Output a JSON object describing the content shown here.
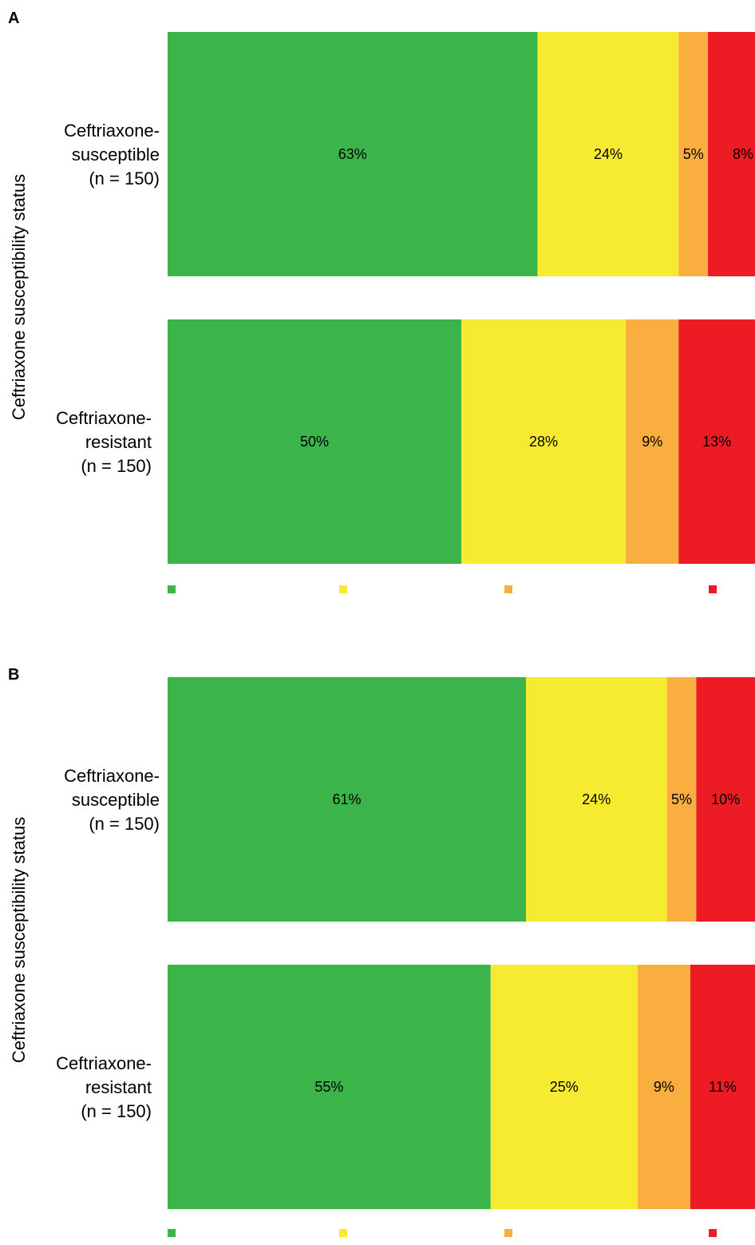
{
  "colors": {
    "green": "#3bb54a",
    "yellow": "#f6eb30",
    "orange": "#fbae40",
    "red": "#ed1c24"
  },
  "chart_data": [
    {
      "type": "bar",
      "orientation": "horizontal",
      "stacked": true,
      "panel_label": "A",
      "ylabel": "Ceftriaxone susceptibility status",
      "xlim": [
        0,
        100
      ],
      "legend_placement": "bottom",
      "categories": [
        {
          "lines": [
            "Ceftriaxone-",
            "susceptible",
            "(n = 150)"
          ]
        },
        {
          "lines": [
            "Ceftriaxone-",
            "resistant",
            "(n = 150)"
          ]
        }
      ],
      "series": [
        {
          "color_key": "green",
          "values": [
            63,
            50
          ],
          "labels": [
            "63%",
            "50%"
          ]
        },
        {
          "color_key": "yellow",
          "values": [
            24,
            28
          ],
          "labels": [
            "24%",
            "28%"
          ]
        },
        {
          "color_key": "orange",
          "values": [
            5,
            9
          ],
          "labels": [
            "5%",
            "9%"
          ]
        },
        {
          "color_key": "red",
          "values": [
            8,
            13
          ],
          "labels": [
            "8%",
            "13%"
          ]
        }
      ]
    },
    {
      "type": "bar",
      "orientation": "horizontal",
      "stacked": true,
      "panel_label": "B",
      "ylabel": "Ceftriaxone susceptibility status",
      "xlim": [
        0,
        100
      ],
      "legend_placement": "bottom",
      "categories": [
        {
          "lines": [
            "Ceftriaxone-",
            "susceptible",
            "(n = 150)"
          ]
        },
        {
          "lines": [
            "Ceftriaxone-",
            "resistant",
            "(n = 150)"
          ]
        }
      ],
      "series": [
        {
          "color_key": "green",
          "values": [
            61,
            55
          ],
          "labels": [
            "61%",
            "55%"
          ]
        },
        {
          "color_key": "yellow",
          "values": [
            24,
            25
          ],
          "labels": [
            "24%",
            "25%"
          ]
        },
        {
          "color_key": "orange",
          "values": [
            5,
            9
          ],
          "labels": [
            "5%",
            "9%"
          ]
        },
        {
          "color_key": "red",
          "values": [
            10,
            11
          ],
          "labels": [
            "10%",
            "11%"
          ]
        }
      ]
    }
  ]
}
